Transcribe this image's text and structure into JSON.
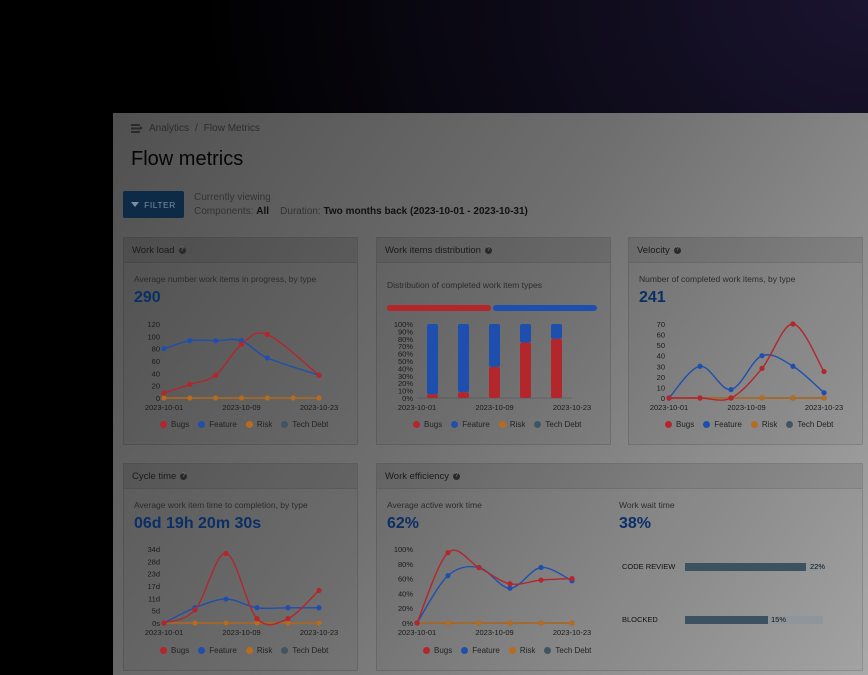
{
  "breadcrumb": {
    "parent": "Analytics",
    "separator": "/",
    "current": "Flow Metrics"
  },
  "page_title": "Flow metrics",
  "filter_button": {
    "label": "FILTER"
  },
  "viewing": {
    "heading": "Currently viewing",
    "components_label": "Components:",
    "components_value": "All",
    "duration_label": "Duration:",
    "duration_value": "Two months back (2023-10-01 - 2023-10-31)"
  },
  "colors": {
    "bugs": "#b3262b",
    "feature": "#1f4fae",
    "risk": "#b86a1e",
    "tech_debt": "#3f5566",
    "accent": "#0a2f66"
  },
  "legend": [
    {
      "label": "Bugs",
      "color": "#b3262b"
    },
    {
      "label": "Feature",
      "color": "#1f4fae"
    },
    {
      "label": "Risk",
      "color": "#b86a1e"
    },
    {
      "label": "Tech Debt",
      "color": "#3f5566"
    }
  ],
  "cards": {
    "workload": {
      "title": "Work load",
      "subtitle": "Average number work items in progress, by type",
      "value": "290"
    },
    "distribution": {
      "title": "Work items distribution",
      "subtitle": "Distribution of completed work item types"
    },
    "velocity": {
      "title": "Velocity",
      "subtitle": "Number of completed work items, by type",
      "value": "241"
    },
    "cycle": {
      "title": "Cycle time",
      "subtitle": "Average work item time to completion, by type",
      "value": "06d 19h 20m 30s"
    },
    "efficiency": {
      "title": "Work efficiency",
      "active_label": "Average active work time",
      "active_value": "62%",
      "wait_label": "Work wait time",
      "wait_value": "38%",
      "wait_items": [
        {
          "label": "CODE REVIEW",
          "percent_text": "22%",
          "fraction": 0.88
        },
        {
          "label": "BLOCKED",
          "percent_text": "15%",
          "fraction": 0.6
        }
      ]
    }
  },
  "chart_data": [
    {
      "id": "workload",
      "type": "line",
      "x": [
        "2023-10-01",
        "2023-10-05",
        "2023-10-09",
        "2023-10-13",
        "2023-10-17",
        "2023-10-23",
        "2023-10-27"
      ],
      "x_tick_labels": [
        "2023-10-01",
        "2023-10-09",
        "2023-10-23"
      ],
      "y_tick_labels": [
        "0",
        "20",
        "40",
        "60",
        "80",
        "100",
        "120"
      ],
      "ylim": [
        0,
        120
      ],
      "series": [
        {
          "name": "Bugs",
          "values": [
            8,
            22,
            37,
            87,
            103,
            null,
            37
          ]
        },
        {
          "name": "Feature",
          "values": [
            80,
            93,
            93,
            93,
            65,
            null,
            37
          ]
        },
        {
          "name": "Risk",
          "values": [
            0,
            0,
            0,
            0,
            0,
            0,
            0
          ]
        },
        {
          "name": "Tech Debt",
          "values": [
            0,
            0,
            0,
            0,
            0,
            0,
            0
          ]
        }
      ]
    },
    {
      "id": "distribution",
      "type": "bar",
      "x_tick_labels": [
        "2023-10-01",
        "2023-10-09",
        "2023-10-23"
      ],
      "y_tick_labels": [
        "0%",
        "10%",
        "20%",
        "30%",
        "40%",
        "50%",
        "60%",
        "70%",
        "80%",
        "90%",
        "100%"
      ],
      "ylim": [
        0,
        100
      ],
      "summary_split": [
        {
          "name": "Bugs",
          "share": 0.5
        },
        {
          "name": "Feature",
          "share": 0.5
        }
      ],
      "series": [
        {
          "name": "Bugs",
          "values": [
            5,
            8,
            42,
            75,
            80
          ]
        },
        {
          "name": "Feature",
          "values": [
            95,
            92,
            58,
            25,
            20
          ]
        }
      ]
    },
    {
      "id": "velocity",
      "type": "line",
      "x_tick_labels": [
        "2023-10-01",
        "2023-10-09",
        "2023-10-23"
      ],
      "y_tick_labels": [
        "0",
        "10",
        "20",
        "30",
        "40",
        "50",
        "60",
        "70"
      ],
      "ylim": [
        0,
        70
      ],
      "series": [
        {
          "name": "Bugs",
          "values": [
            0,
            0,
            0,
            28,
            70,
            25
          ]
        },
        {
          "name": "Feature",
          "values": [
            0,
            30,
            8,
            40,
            30,
            5
          ]
        },
        {
          "name": "Risk",
          "values": [
            0,
            0,
            0,
            0,
            0,
            0
          ]
        },
        {
          "name": "Tech Debt",
          "values": [
            0,
            0,
            0,
            0,
            0,
            0
          ]
        }
      ]
    },
    {
      "id": "cycle",
      "type": "line",
      "x_tick_labels": [
        "2023-10-01",
        "2023-10-09",
        "2023-10-23"
      ],
      "y_tick_labels": [
        "0s",
        "5d",
        "11d",
        "17d",
        "23d",
        "28d",
        "34d"
      ],
      "ylim": [
        0,
        34
      ],
      "series": [
        {
          "name": "Bugs",
          "values": [
            0,
            6,
            32,
            2,
            2,
            15
          ]
        },
        {
          "name": "Feature",
          "values": [
            0,
            7,
            11,
            7,
            7,
            7
          ]
        },
        {
          "name": "Risk",
          "values": [
            0,
            0,
            0,
            0,
            0,
            0
          ]
        },
        {
          "name": "Tech Debt",
          "values": [
            0,
            0,
            0,
            0,
            0,
            0
          ]
        }
      ]
    },
    {
      "id": "efficiency",
      "type": "line",
      "x_tick_labels": [
        "2023-10-01",
        "2023-10-09",
        "2023-10-23"
      ],
      "y_tick_labels": [
        "0%",
        "20%",
        "40%",
        "60%",
        "80%",
        "100%"
      ],
      "ylim": [
        0,
        100
      ],
      "series": [
        {
          "name": "Bugs",
          "values": [
            0,
            95,
            75,
            53,
            58,
            60
          ]
        },
        {
          "name": "Feature",
          "values": [
            0,
            64,
            75,
            47,
            75,
            57
          ]
        },
        {
          "name": "Risk",
          "values": [
            0,
            0,
            0,
            0,
            0,
            0
          ]
        },
        {
          "name": "Tech Debt",
          "values": [
            0,
            0,
            0,
            0,
            0,
            0
          ]
        }
      ]
    }
  ]
}
